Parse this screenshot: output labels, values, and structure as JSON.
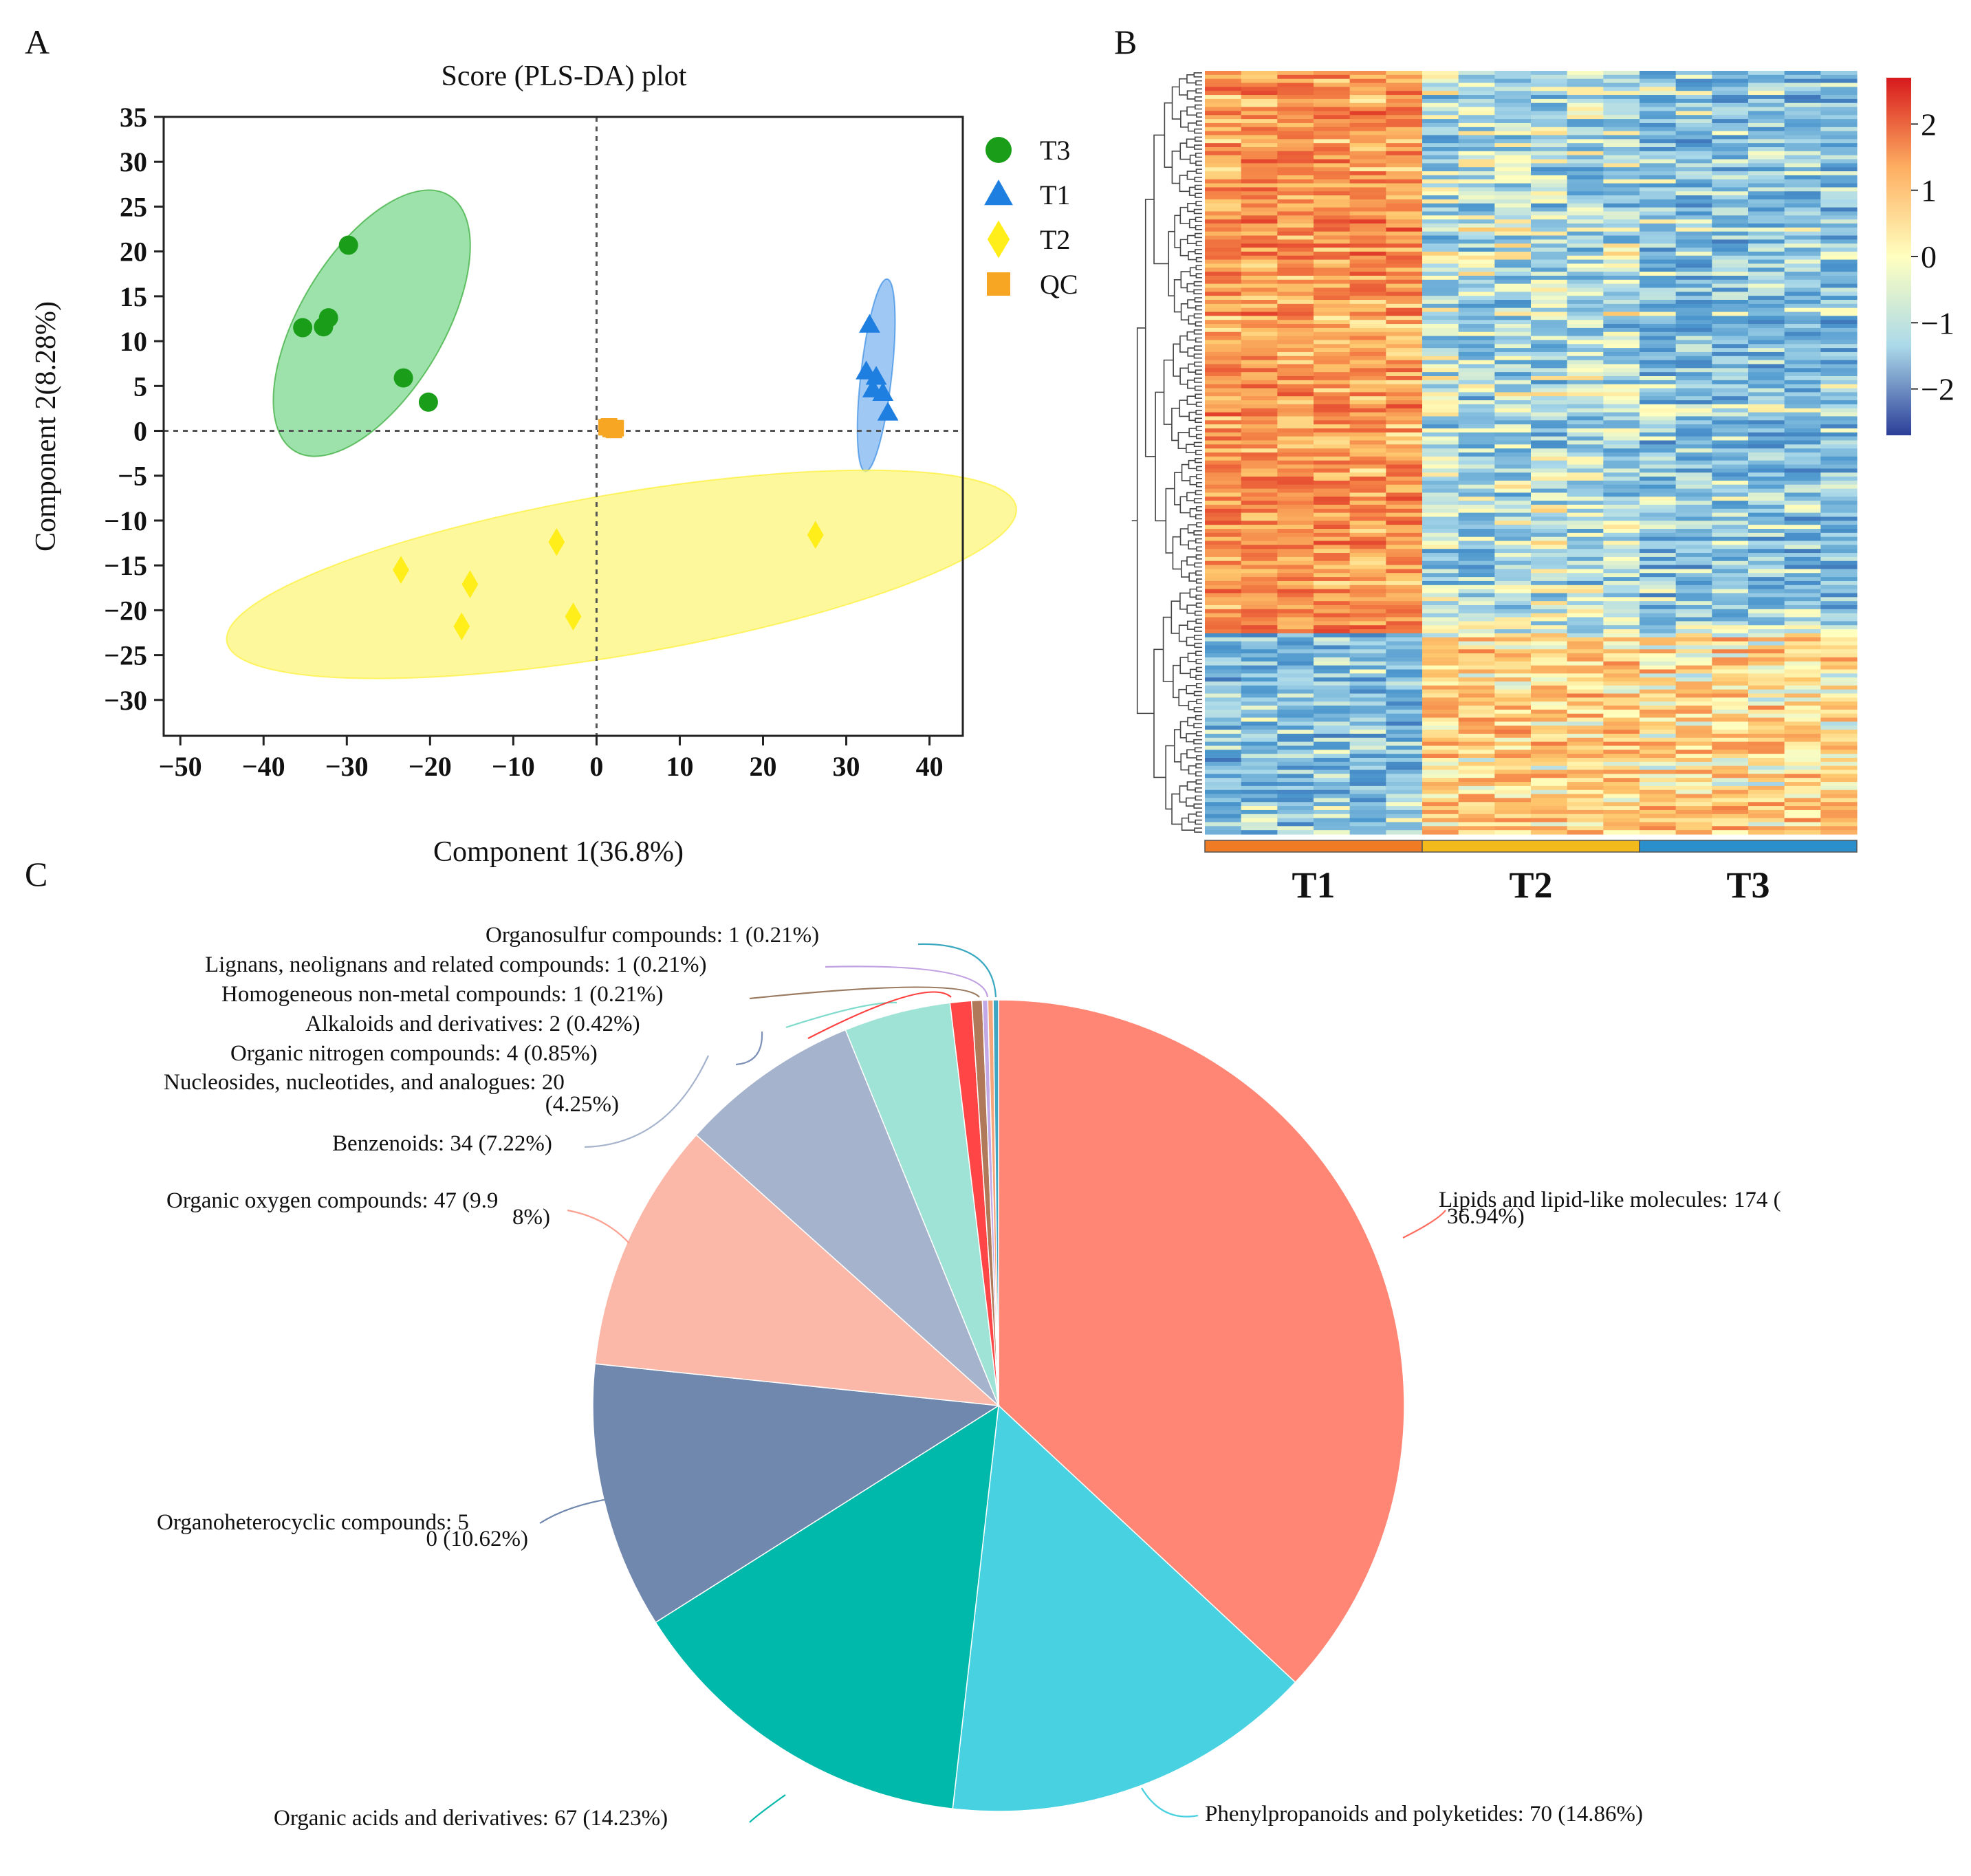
{
  "panels": {
    "a": "A",
    "b": "B",
    "c": "C"
  },
  "chart_data": [
    {
      "type": "scatter",
      "title": "Score (PLS-DA) plot",
      "xlabel": "Component 1(36.8%)",
      "ylabel": "Component 2(8.28%)",
      "xlim": [
        -52,
        44
      ],
      "ylim": [
        -34,
        35
      ],
      "xticks": [
        -50,
        -40,
        -30,
        -20,
        -10,
        0,
        10,
        20,
        30,
        40
      ],
      "yticks": [
        35,
        30,
        25,
        20,
        15,
        10,
        5,
        0,
        -5,
        -10,
        -15,
        -20,
        -25,
        -30
      ],
      "tick_labels_x": [
        "−50",
        "−40",
        "−30",
        "−20",
        "−10",
        "0",
        "10",
        "20",
        "30",
        "40"
      ],
      "tick_labels_y": [
        "35",
        "30",
        "25",
        "20",
        "15",
        "10",
        "5",
        "0",
        "−5",
        "−10",
        "−15",
        "−20",
        "−25",
        "−30"
      ],
      "reference_lines": {
        "x": 0,
        "y": 0
      },
      "legend": [
        "T3",
        "T1",
        "T2",
        "QC"
      ],
      "series": [
        {
          "name": "T3",
          "marker": "circle",
          "color": "#1a9e1a",
          "ellipse_color": "#7dd88f",
          "ellipse": {
            "cx": -27,
            "cy": 12,
            "rx": 17,
            "ry": 8.4,
            "angle_deg": 57
          },
          "points": [
            [
              -29.8,
              20.7
            ],
            [
              -32.2,
              12.6
            ],
            [
              -32.8,
              11.6
            ],
            [
              -35.3,
              11.5
            ],
            [
              -23.2,
              5.9
            ],
            [
              -20.2,
              3.2
            ]
          ]
        },
        {
          "name": "T1",
          "marker": "triangle",
          "color": "#1f7fe0",
          "ellipse_color": "#7fb6f2",
          "ellipse": {
            "cx": 33.6,
            "cy": 6.2,
            "rx": 10.8,
            "ry": 1.85,
            "angle_deg": 83
          },
          "points": [
            [
              32.8,
              11.8
            ],
            [
              32.4,
              6.6
            ],
            [
              33.6,
              6.0
            ],
            [
              33.2,
              4.6
            ],
            [
              34.4,
              4.2
            ],
            [
              35.0,
              2.0
            ]
          ]
        },
        {
          "name": "T2",
          "marker": "diamond",
          "color": "#ffee1a",
          "ellipse_color": "#fbf67a",
          "ellipse": {
            "cx": 3,
            "cy": -16,
            "rx": 48,
            "ry": 9,
            "angle_deg": 9
          },
          "points": [
            [
              -23.5,
              -15.5
            ],
            [
              -15.2,
              -17.1
            ],
            [
              -16.2,
              -21.8
            ],
            [
              -4.8,
              -12.4
            ],
            [
              -2.8,
              -20.7
            ],
            [
              26.3,
              -11.6
            ]
          ]
        },
        {
          "name": "QC",
          "marker": "square",
          "color": "#f6a623",
          "points": [
            [
              1.2,
              0.4
            ],
            [
              1.7,
              0.2
            ],
            [
              2.1,
              0.1
            ],
            [
              1.5,
              0.5
            ],
            [
              2.3,
              0.3
            ]
          ]
        }
      ]
    },
    {
      "type": "heatmap",
      "title": "",
      "groups": [
        "T1",
        "T2",
        "T3"
      ],
      "group_colors": [
        "#f07b25",
        "#f2ba1a",
        "#2b8fcc"
      ],
      "n_rows": 190,
      "n_cols_per_group": 6,
      "colorbar_range": [
        -2.7,
        2.7
      ],
      "colorbar_ticks": [
        2,
        1,
        0,
        -1,
        -2
      ],
      "colorbar_labels": [
        "2",
        "1",
        "0",
        "−1",
        "−2"
      ],
      "row_clusters": [
        {
          "rows": 140,
          "T1": 1.2,
          "T2": -0.45,
          "T3": -0.75
        },
        {
          "rows": 50,
          "T1": -0.85,
          "T2": 0.55,
          "T3": 0.45
        }
      ]
    },
    {
      "type": "pie",
      "title": "",
      "slices": [
        {
          "label": "Lipids and lipid-like molecules: 174 (",
          "label2": "36.94%)",
          "value": 174,
          "percent": 36.94,
          "color": "#ff8674",
          "leader": "#ff6b5c"
        },
        {
          "label": "Phenylpropanoids and polyketides: 70 (14.86%)",
          "label2": "",
          "value": 70,
          "percent": 14.86,
          "color": "#48d1e0",
          "leader": "#48d1e0"
        },
        {
          "label": "Organic acids and derivatives: 67 (14.23%)",
          "label2": "",
          "value": 67,
          "percent": 14.23,
          "color": "#00b9aa",
          "leader": "#00b9aa"
        },
        {
          "label": "Organoheterocyclic compounds: 5",
          "label2": "0 (10.62%)",
          "value": 50,
          "percent": 10.62,
          "color": "#7188ae",
          "leader": "#7188ae"
        },
        {
          "label": "Organic oxygen compounds: 47 (9.9",
          "label2": "8%)",
          "value": 47,
          "percent": 9.98,
          "color": "#fbb8a8",
          "leader": "#fba090"
        },
        {
          "label": "Benzenoids: 34 (7.22%)",
          "label2": "",
          "value": 34,
          "percent": 7.22,
          "color": "#a5b3cc",
          "leader": "#a5b3cc"
        },
        {
          "label": "Nucleosides, nucleotides, and analogues: 20",
          "label2": "(4.25%)",
          "value": 20,
          "percent": 4.25,
          "color": "#9fe2d6",
          "leader": "#7e90b8"
        },
        {
          "label": "Organic nitrogen compounds: 4 (0.85%)",
          "label2": "",
          "value": 4,
          "percent": 0.85,
          "color": "#ff4545",
          "leader": "#7fdccc"
        },
        {
          "label": "Alkaloids and derivatives: 2 (0.42%)",
          "label2": "",
          "value": 2,
          "percent": 0.42,
          "color": "#b07a5a",
          "leader": "#ff4040"
        },
        {
          "label": "Homogeneous non-metal compounds: 1 (0.21%)",
          "label2": "",
          "value": 1,
          "percent": 0.21,
          "color": "#c3a8e6",
          "leader": "#9a7a60"
        },
        {
          "label": "Lignans, neolignans and related compounds: 1 (0.21%)",
          "label2": "",
          "value": 1,
          "percent": 0.21,
          "color": "#f6a57a",
          "leader": "#c0a0e0"
        },
        {
          "label": "Organosulfur compounds: 1 (0.21%)",
          "label2": "",
          "value": 1,
          "percent": 0.21,
          "color": "#3ea6c0",
          "leader": "#3aa8c0"
        }
      ]
    }
  ]
}
